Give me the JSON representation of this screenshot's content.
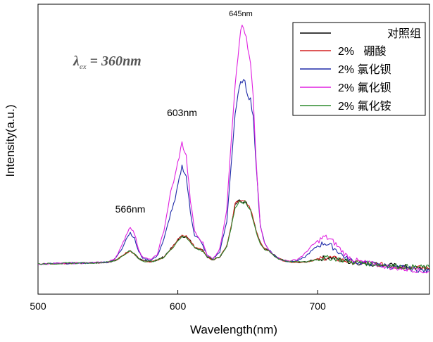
{
  "chart_data": {
    "type": "line",
    "xlabel": "Wavelength(nm)",
    "ylabel": "Intensity(a.u.)",
    "xlim": [
      500,
      780
    ],
    "ylim": [
      -0.5,
      4.3
    ],
    "xticks": [
      500,
      600,
      700
    ],
    "grid": false,
    "legend_position": "top-right",
    "excitation": {
      "lambda": "λ",
      "sub": "ex",
      "rest": " = 360",
      "unit": "nm"
    },
    "peak_labels": [
      {
        "id": "566",
        "text": "566nm",
        "x": 566,
        "y": 0.85
      },
      {
        "id": "603",
        "text": "603nm",
        "x": 603,
        "y": 2.45
      },
      {
        "id": "645",
        "text": "645nm",
        "x": 645,
        "y": 4.1
      }
    ],
    "x": [
      500,
      520,
      540,
      550,
      555,
      560,
      563,
      566,
      569,
      572,
      575,
      580,
      585,
      590,
      595,
      598,
      600,
      603,
      606,
      609,
      612,
      615,
      618,
      621,
      625,
      630,
      635,
      638,
      641,
      644,
      646,
      648,
      650,
      652,
      654,
      656,
      659,
      662,
      665,
      670,
      675,
      680,
      685,
      690,
      695,
      700,
      705,
      708,
      712,
      716,
      720,
      725,
      730,
      735,
      740,
      745,
      750,
      760,
      770,
      780
    ],
    "series": [
      {
        "name": "对照组",
        "color": "#000000",
        "values": [
          0,
          0.01,
          0.02,
          0.03,
          0.06,
          0.12,
          0.18,
          0.22,
          0.17,
          0.09,
          0.05,
          0.04,
          0.06,
          0.12,
          0.25,
          0.33,
          0.4,
          0.46,
          0.45,
          0.38,
          0.28,
          0.25,
          0.22,
          0.12,
          0.07,
          0.12,
          0.3,
          0.6,
          0.98,
          1.05,
          1.02,
          1.04,
          0.97,
          0.92,
          0.75,
          0.55,
          0.35,
          0.25,
          0.22,
          0.12,
          0.06,
          0.04,
          0.03,
          0.03,
          0.05,
          0.08,
          0.1,
          0.11,
          0.09,
          0.07,
          0.05,
          0.03,
          0.02,
          0.01,
          0.0,
          -0.01,
          -0.02,
          -0.04,
          -0.06,
          -0.07
        ]
      },
      {
        "name": "2%   硼酸",
        "color": "#d42020",
        "values": [
          0,
          0.01,
          0.02,
          0.03,
          0.06,
          0.12,
          0.18,
          0.22,
          0.16,
          0.09,
          0.05,
          0.04,
          0.06,
          0.12,
          0.25,
          0.33,
          0.4,
          0.47,
          0.46,
          0.38,
          0.28,
          0.26,
          0.22,
          0.12,
          0.07,
          0.12,
          0.3,
          0.6,
          0.99,
          1.06,
          1.03,
          1.03,
          0.98,
          0.91,
          0.74,
          0.55,
          0.36,
          0.26,
          0.22,
          0.12,
          0.06,
          0.04,
          0.03,
          0.03,
          0.05,
          0.08,
          0.1,
          0.11,
          0.09,
          0.07,
          0.05,
          0.03,
          0.02,
          0.01,
          0.0,
          -0.01,
          -0.03,
          -0.05,
          -0.06,
          -0.08
        ]
      },
      {
        "name": "2% 氯化钡",
        "color": "#1e2aa8",
        "values": [
          0,
          0.01,
          0.02,
          0.03,
          0.08,
          0.25,
          0.42,
          0.52,
          0.42,
          0.2,
          0.1,
          0.06,
          0.12,
          0.4,
          0.85,
          1.05,
          1.3,
          1.62,
          1.45,
          0.85,
          0.48,
          0.42,
          0.3,
          0.14,
          0.08,
          0.2,
          0.7,
          1.6,
          2.5,
          2.9,
          3.05,
          2.98,
          2.82,
          2.72,
          2.45,
          1.6,
          0.65,
          0.35,
          0.24,
          0.12,
          0.06,
          0.04,
          0.05,
          0.1,
          0.2,
          0.3,
          0.35,
          0.32,
          0.26,
          0.18,
          0.1,
          0.05,
          0.02,
          0.01,
          0.0,
          -0.02,
          -0.04,
          -0.06,
          -0.09,
          -0.12
        ]
      },
      {
        "name": "2% 氟化钡",
        "color": "#e020e0",
        "values": [
          0,
          0.01,
          0.02,
          0.03,
          0.09,
          0.3,
          0.48,
          0.62,
          0.5,
          0.24,
          0.11,
          0.07,
          0.14,
          0.55,
          1.2,
          1.45,
          1.68,
          2.0,
          1.78,
          1.05,
          0.55,
          0.42,
          0.35,
          0.15,
          0.08,
          0.25,
          0.9,
          2.0,
          3.0,
          3.7,
          3.95,
          3.85,
          3.55,
          3.3,
          2.7,
          1.7,
          0.62,
          0.34,
          0.23,
          0.12,
          0.06,
          0.05,
          0.07,
          0.15,
          0.28,
          0.38,
          0.45,
          0.42,
          0.35,
          0.25,
          0.15,
          0.08,
          0.04,
          0.02,
          0.0,
          -0.02,
          -0.05,
          -0.08,
          -0.1,
          -0.14
        ]
      },
      {
        "name": "2% 氟化铵",
        "color": "#2e8b2e",
        "values": [
          0,
          0.01,
          0.02,
          0.03,
          0.06,
          0.12,
          0.18,
          0.21,
          0.16,
          0.09,
          0.05,
          0.04,
          0.06,
          0.11,
          0.24,
          0.32,
          0.39,
          0.45,
          0.44,
          0.37,
          0.27,
          0.24,
          0.21,
          0.12,
          0.07,
          0.12,
          0.29,
          0.58,
          0.95,
          1.02,
          1.0,
          1.02,
          0.95,
          0.9,
          0.72,
          0.53,
          0.34,
          0.24,
          0.21,
          0.11,
          0.06,
          0.04,
          0.03,
          0.03,
          0.05,
          0.08,
          0.1,
          0.1,
          0.09,
          0.07,
          0.05,
          0.03,
          0.02,
          0.01,
          0.0,
          -0.01,
          -0.02,
          -0.04,
          -0.05,
          -0.06
        ]
      }
    ]
  }
}
